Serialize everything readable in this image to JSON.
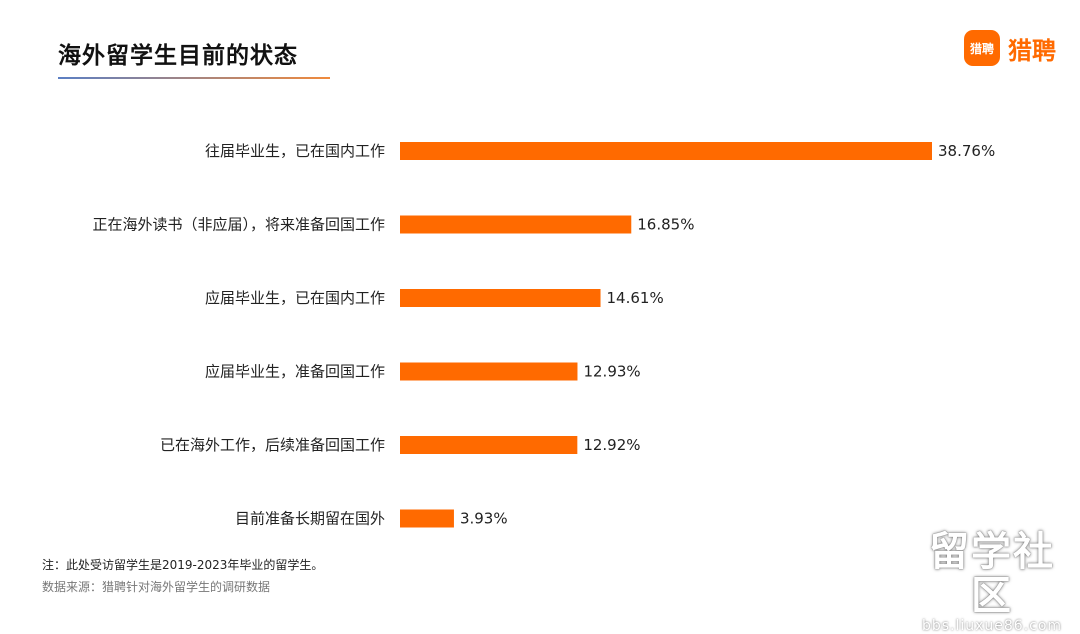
{
  "brand": {
    "badge_text": "猎聘",
    "name": "猎聘",
    "accent_color": "#ff6a00"
  },
  "chart_data": {
    "type": "bar",
    "orientation": "horizontal",
    "title": "海外留学生目前的状态",
    "categories": [
      "往届毕业生，已在国内工作",
      "正在海外读书（非应届），将来准备回国工作",
      "应届毕业生，已在国内工作",
      "应届毕业生，准备回国工作",
      "已在海外工作，后续准备回国工作",
      "目前准备长期留在国外"
    ],
    "values": [
      38.76,
      16.85,
      14.61,
      12.93,
      12.92,
      3.93
    ],
    "value_labels": [
      "38.76%",
      "16.85%",
      "14.61%",
      "12.93%",
      "12.92%",
      "3.93%"
    ],
    "xlim": [
      0,
      38.76
    ],
    "bar_color": "#ff6a00",
    "grid": false,
    "legend": "none"
  },
  "footnote": {
    "note": "注：此处受访留学生是2019-2023年毕业的留学生。",
    "source": "数据来源：猎聘针对海外留学生的调研数据"
  },
  "watermark": {
    "main": "留学社区",
    "url": "bbs.liuxue86.com"
  }
}
